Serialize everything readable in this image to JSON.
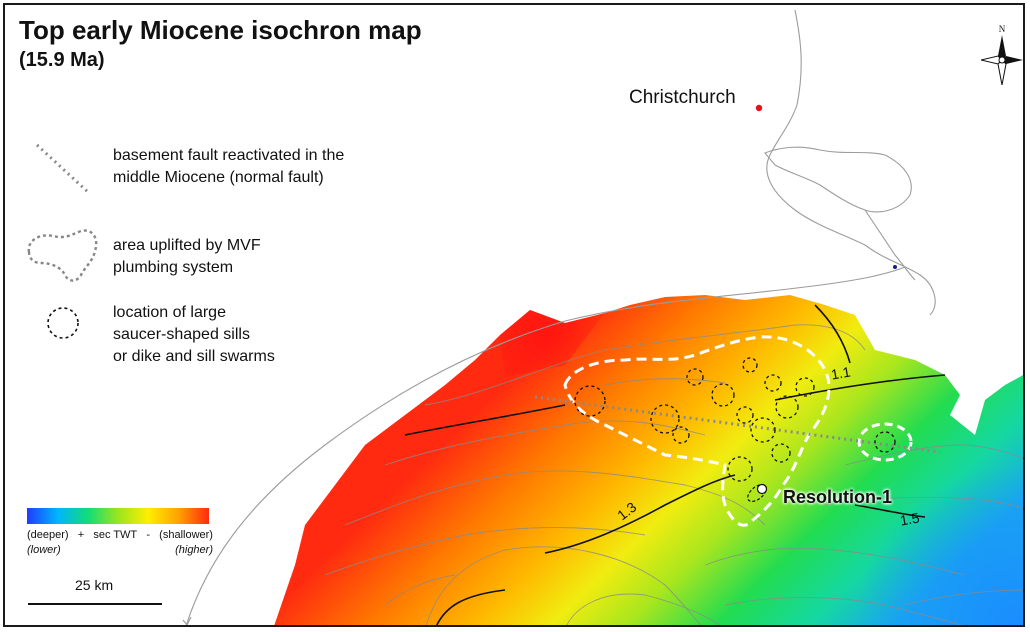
{
  "title": "Top early Miocene isochron map",
  "subtitle": "(15.9 Ma)",
  "city": {
    "name": "Christchurch",
    "color": "#e8101a"
  },
  "legend": {
    "fault": "basement fault reactivated in the middle Miocene (normal fault)",
    "fault_line1": "basement fault reactivated in the",
    "fault_line2": "middle Miocene (normal fault)",
    "uplift_line1": "area uplifted by MVF",
    "uplift_line2": "plumbing system",
    "sills_line1": "location of large",
    "sills_line2": "saucer-shaped sills",
    "sills_line3": "or dike and sill swarms"
  },
  "colorbar": {
    "left_main": "(deeper)",
    "plus": "+",
    "center": "sec TWT",
    "minus": "-",
    "right_main": "(shallower)",
    "left_sub": "(lower)",
    "right_sub": "(higher)",
    "colors": [
      "#1f3cff",
      "#00b4ff",
      "#11dc78",
      "#9be51e",
      "#ffee00",
      "#ffa100",
      "#ff2a10"
    ]
  },
  "scale": {
    "label": "25 km"
  },
  "well": {
    "name": "Resolution-1"
  },
  "contours": {
    "c1": "1.1",
    "c2": "1.3",
    "c3": "1.5"
  },
  "compass": {
    "letter": "N"
  }
}
